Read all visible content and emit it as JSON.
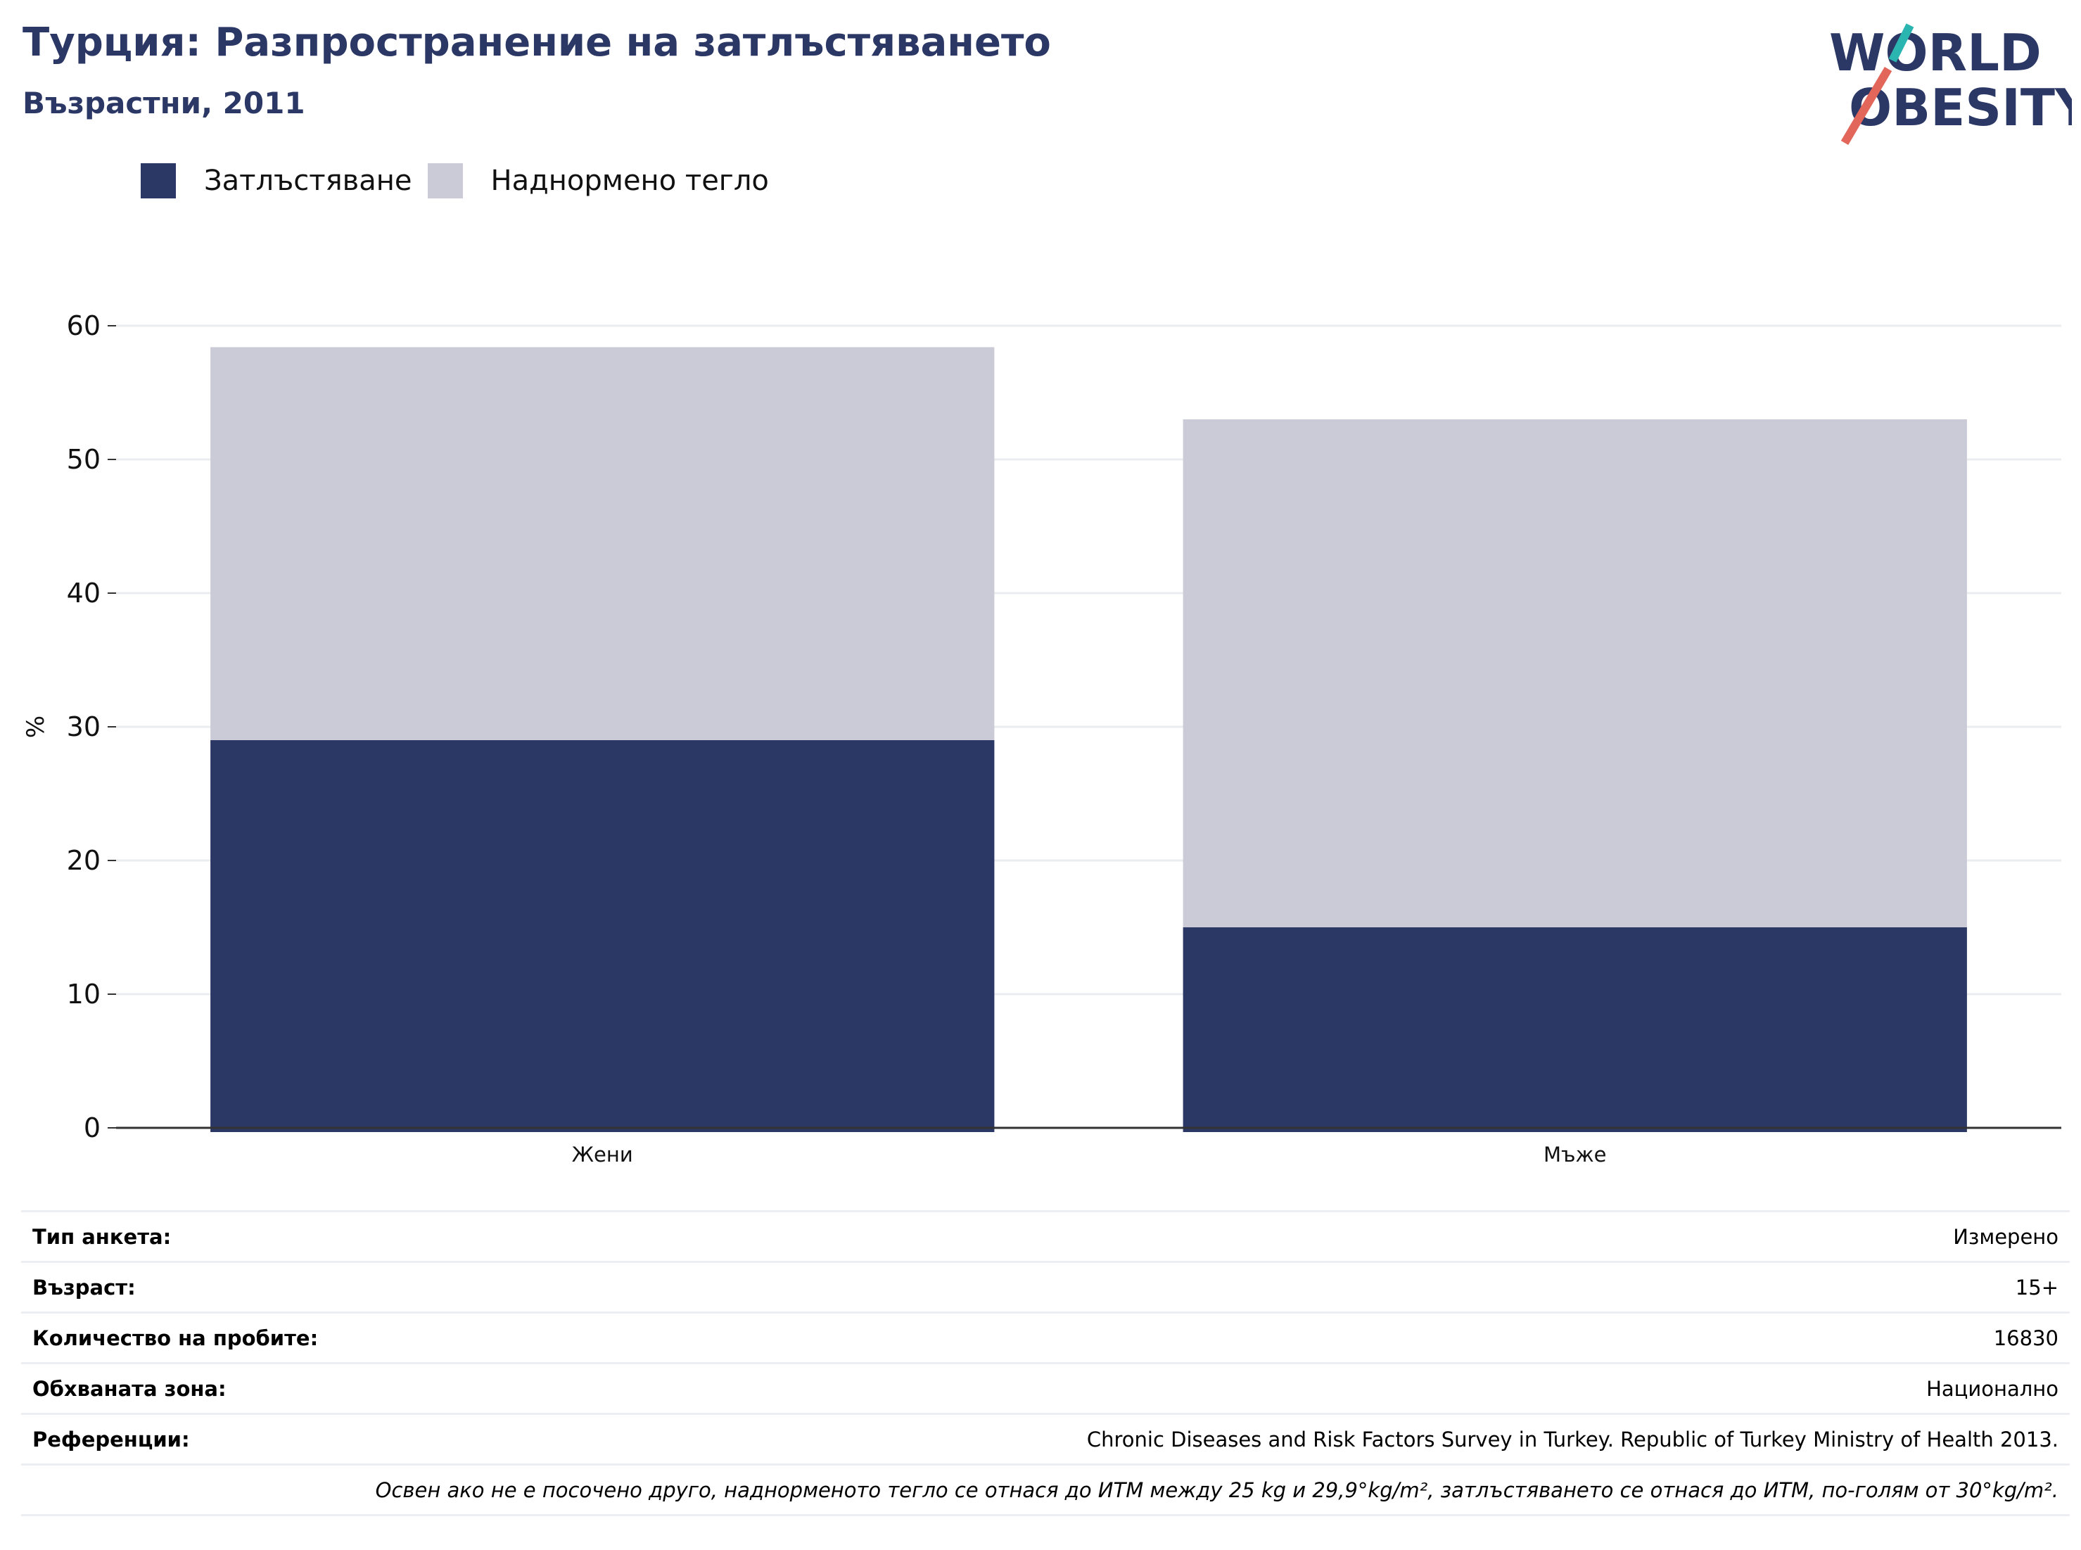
{
  "header": {
    "title": "Турция: Разпространение на затлъстяването",
    "subtitle": "Възрастни, 2011"
  },
  "logo": {
    "line1": "WORLD",
    "line2": "OBESITY",
    "slash_colors": [
      "#2bb5b0",
      "#e2675a"
    ],
    "text_color": "#2b3765"
  },
  "chart_data": {
    "type": "bar",
    "stacked": true,
    "categories": [
      "Жени",
      "Мъже"
    ],
    "series": [
      {
        "name": "Затлъстяване",
        "color": "#2b3765",
        "values": [
          29.0,
          15.0
        ]
      },
      {
        "name": "Наднормено тегло",
        "color": "#cacbd7",
        "values": [
          29.4,
          38.0
        ]
      }
    ],
    "ylabel": "%",
    "ylim": [
      0,
      60
    ],
    "yticks": [
      0,
      10,
      20,
      30,
      40,
      50,
      60
    ],
    "grid": true,
    "legend_position": "top-left"
  },
  "metadata": [
    {
      "key": "Тип анкета:",
      "value": "Измерено"
    },
    {
      "key": "Възраст:",
      "value": "15+"
    },
    {
      "key": "Количество на пробите:",
      "value": "16830"
    },
    {
      "key": "Обхваната зона:",
      "value": "Национално"
    },
    {
      "key": "Референции:",
      "value": "Chronic Diseases and Risk Factors Survey in Turkey. Republic of Turkey Ministry of Health 2013."
    }
  ],
  "footnote": "Освен ако не е посочено друго, наднорменото тегло се отнася до ИТМ между 25 kg и 29,9°kg/m², затлъстяването се отнася до ИТМ, по-голям от 30°kg/m²."
}
